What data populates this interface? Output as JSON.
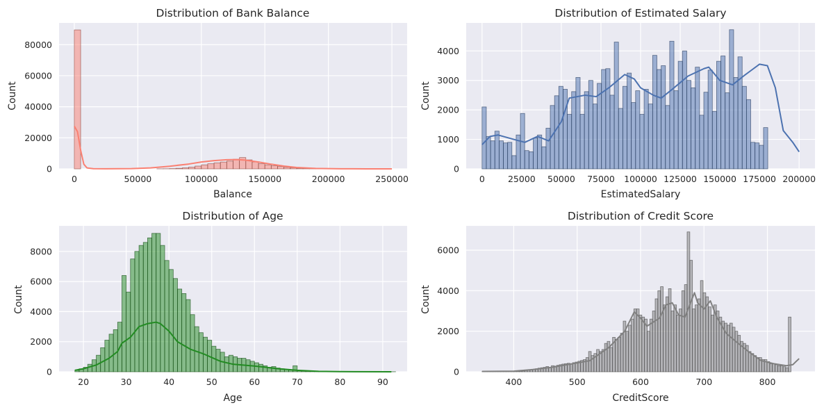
{
  "chart_data": [
    {
      "type": "histogram",
      "title": "Distribution of Bank Balance",
      "xlabel": "Balance",
      "ylabel": "Count",
      "xlim": [
        -12000,
        262000
      ],
      "ylim": [
        0,
        94000
      ],
      "xticks": [
        0,
        50000,
        100000,
        150000,
        200000,
        250000
      ],
      "yticks": [
        0,
        20000,
        40000,
        60000,
        80000
      ],
      "color": "#fa8072",
      "kde": true,
      "bins": {
        "start": 0,
        "width": 5000,
        "counts": [
          89500,
          0,
          0,
          0,
          0,
          0,
          0,
          0,
          0,
          0,
          0,
          0,
          0,
          30,
          80,
          180,
          350,
          650,
          1100,
          1800,
          2600,
          3300,
          3900,
          4400,
          5000,
          6200,
          7300,
          5800,
          4500,
          3300,
          2600,
          2000,
          1500,
          1000,
          700,
          400,
          250,
          150,
          80,
          40,
          20,
          10,
          5,
          0,
          0,
          0,
          0,
          0,
          0,
          0
        ]
      },
      "kde_points": [
        [
          0,
          27500
        ],
        [
          2500,
          24000
        ],
        [
          5000,
          12000
        ],
        [
          7500,
          3000
        ],
        [
          10000,
          600
        ],
        [
          15000,
          100
        ],
        [
          25000,
          30
        ],
        [
          45000,
          150
        ],
        [
          60000,
          600
        ],
        [
          75000,
          1700
        ],
        [
          90000,
          3100
        ],
        [
          100000,
          4400
        ],
        [
          110000,
          5300
        ],
        [
          120000,
          5900
        ],
        [
          128000,
          6000
        ],
        [
          135000,
          5600
        ],
        [
          145000,
          4400
        ],
        [
          155000,
          3000
        ],
        [
          165000,
          1800
        ],
        [
          175000,
          900
        ],
        [
          190000,
          300
        ],
        [
          210000,
          80
        ],
        [
          230000,
          20
        ],
        [
          250000,
          10
        ]
      ]
    },
    {
      "type": "histogram",
      "title": "Distribution of Estimated Salary",
      "xlabel": "EstimatedSalary",
      "ylabel": "Count",
      "xlim": [
        -10000,
        210000
      ],
      "ylim": [
        0,
        4950
      ],
      "xticks": [
        0,
        25000,
        50000,
        75000,
        100000,
        125000,
        150000,
        175000,
        200000
      ],
      "yticks": [
        0,
        1000,
        2000,
        3000,
        4000
      ],
      "color": "#4c72b0",
      "kde": true,
      "bins": {
        "start": 0,
        "width": 2690,
        "counts": [
          2100,
          1100,
          950,
          1280,
          950,
          880,
          900,
          450,
          1150,
          1880,
          620,
          580,
          1050,
          1150,
          750,
          1380,
          2150,
          2480,
          2800,
          2700,
          1850,
          2620,
          3100,
          1850,
          2620,
          3000,
          2200,
          2900,
          3370,
          3400,
          2500,
          4300,
          2050,
          2800,
          3250,
          2250,
          2650,
          1850,
          2700,
          2200,
          3850,
          3370,
          3500,
          2150,
          4330,
          2650,
          3650,
          4000,
          3000,
          2750,
          3450,
          1820,
          2600,
          3350,
          1950,
          3650,
          3830,
          2580,
          4720,
          3100,
          3800,
          2800,
          2350,
          900,
          880,
          800,
          1400
        ]
      },
      "kde_points": [
        [
          0,
          820
        ],
        [
          5000,
          1100
        ],
        [
          10000,
          1150
        ],
        [
          20000,
          1000
        ],
        [
          27000,
          900
        ],
        [
          35000,
          1100
        ],
        [
          42000,
          950
        ],
        [
          50000,
          1600
        ],
        [
          55000,
          2400
        ],
        [
          65000,
          2500
        ],
        [
          72000,
          2450
        ],
        [
          80000,
          2750
        ],
        [
          90000,
          3200
        ],
        [
          96000,
          3050
        ],
        [
          100000,
          2750
        ],
        [
          108000,
          2500
        ],
        [
          113000,
          2400
        ],
        [
          120000,
          2700
        ],
        [
          130000,
          3150
        ],
        [
          140000,
          3400
        ],
        [
          143000,
          3450
        ],
        [
          150000,
          3000
        ],
        [
          158000,
          2850
        ],
        [
          165000,
          3150
        ],
        [
          170000,
          3350
        ],
        [
          175000,
          3550
        ],
        [
          180000,
          3500
        ],
        [
          185000,
          2750
        ],
        [
          190000,
          1300
        ],
        [
          196000,
          900
        ],
        [
          200000,
          580
        ]
      ]
    },
    {
      "type": "histogram",
      "title": "Distribution of Age",
      "xlabel": "Age",
      "ylabel": "Count",
      "xlim": [
        14.3,
        95.7
      ],
      "ylim": [
        0,
        9700
      ],
      "xticks": [
        20,
        30,
        40,
        50,
        60,
        70,
        80,
        90
      ],
      "yticks": [
        0,
        2000,
        4000,
        6000,
        8000
      ],
      "color": "#228b22",
      "kde": true,
      "bins": {
        "start": 18,
        "width": 1,
        "counts": [
          100,
          200,
          300,
          500,
          800,
          1100,
          1600,
          2100,
          2500,
          2800,
          3300,
          6400,
          5300,
          7500,
          8000,
          8400,
          8600,
          8900,
          9200,
          9200,
          8400,
          7400,
          6800,
          6200,
          5500,
          5200,
          4800,
          3800,
          3000,
          2600,
          2300,
          2100,
          1700,
          1500,
          1300,
          1000,
          1100,
          1000,
          900,
          900,
          800,
          700,
          600,
          500,
          400,
          300,
          350,
          250,
          200,
          150,
          120,
          400,
          80,
          60,
          50,
          40,
          30,
          20,
          15,
          10,
          10,
          10,
          5,
          5,
          5,
          5,
          5,
          5,
          5,
          5,
          5,
          5,
          5,
          5,
          5
        ]
      },
      "kde_points": [
        [
          18,
          100
        ],
        [
          20,
          200
        ],
        [
          23,
          450
        ],
        [
          26,
          900
        ],
        [
          28,
          1350
        ],
        [
          29,
          1900
        ],
        [
          30,
          2100
        ],
        [
          31,
          2300
        ],
        [
          33,
          3000
        ],
        [
          35,
          3200
        ],
        [
          37,
          3300
        ],
        [
          38,
          3200
        ],
        [
          40,
          2700
        ],
        [
          42,
          2000
        ],
        [
          45,
          1500
        ],
        [
          48,
          1200
        ],
        [
          50,
          950
        ],
        [
          52,
          700
        ],
        [
          55,
          500
        ],
        [
          60,
          380
        ],
        [
          65,
          220
        ],
        [
          70,
          100
        ],
        [
          75,
          30
        ],
        [
          80,
          10
        ],
        [
          92,
          0
        ]
      ]
    },
    {
      "type": "histogram",
      "title": "Distribution of Credit Score",
      "xlabel": "CreditScore",
      "ylabel": "Count",
      "xlim": [
        325,
        875
      ],
      "ylim": [
        0,
        7200
      ],
      "xticks": [
        400,
        500,
        600,
        700,
        800
      ],
      "yticks": [
        0,
        2000,
        4000,
        6000
      ],
      "color": "#808080",
      "kde": true,
      "bins": {
        "start": 350,
        "width": 4.2,
        "counts": [
          15,
          15,
          15,
          15,
          15,
          15,
          15,
          15,
          15,
          15,
          15,
          15,
          15,
          20,
          30,
          40,
          60,
          80,
          100,
          120,
          150,
          180,
          200,
          220,
          260,
          220,
          300,
          280,
          320,
          350,
          380,
          400,
          420,
          400,
          450,
          480,
          520,
          560,
          600,
          700,
          1000,
          800,
          900,
          1100,
          1000,
          1100,
          1400,
          1500,
          1200,
          1700,
          1600,
          1700,
          1900,
          2500,
          2000,
          2300,
          2600,
          3100,
          3100,
          2800,
          2700,
          2600,
          2000,
          2600,
          3000,
          3600,
          4000,
          4200,
          3300,
          3700,
          4100,
          3000,
          3300,
          2800,
          3100,
          4000,
          4300,
          6900,
          5500,
          3100,
          3300,
          3600,
          4500,
          3900,
          3700,
          3200,
          2800,
          3300,
          3000,
          2700,
          2500,
          2400,
          2300,
          2400,
          2200,
          2000,
          1800,
          1500,
          1400,
          1300,
          1000,
          900,
          800,
          700,
          700,
          600,
          600,
          500,
          400,
          400,
          350,
          300,
          300,
          250,
          200,
          2700
        ]
      },
      "kde_points": [
        [
          350,
          15
        ],
        [
          400,
          30
        ],
        [
          430,
          110
        ],
        [
          460,
          220
        ],
        [
          490,
          380
        ],
        [
          520,
          550
        ],
        [
          550,
          1200
        ],
        [
          575,
          2000
        ],
        [
          590,
          2950
        ],
        [
          600,
          2650
        ],
        [
          610,
          2250
        ],
        [
          630,
          2650
        ],
        [
          640,
          3300
        ],
        [
          650,
          3400
        ],
        [
          660,
          2800
        ],
        [
          670,
          2700
        ],
        [
          680,
          3500
        ],
        [
          685,
          3900
        ],
        [
          690,
          3400
        ],
        [
          700,
          3100
        ],
        [
          710,
          3500
        ],
        [
          720,
          2700
        ],
        [
          735,
          1900
        ],
        [
          750,
          1500
        ],
        [
          770,
          1000
        ],
        [
          790,
          550
        ],
        [
          810,
          400
        ],
        [
          830,
          300
        ],
        [
          840,
          350
        ],
        [
          850,
          650
        ]
      ]
    }
  ]
}
